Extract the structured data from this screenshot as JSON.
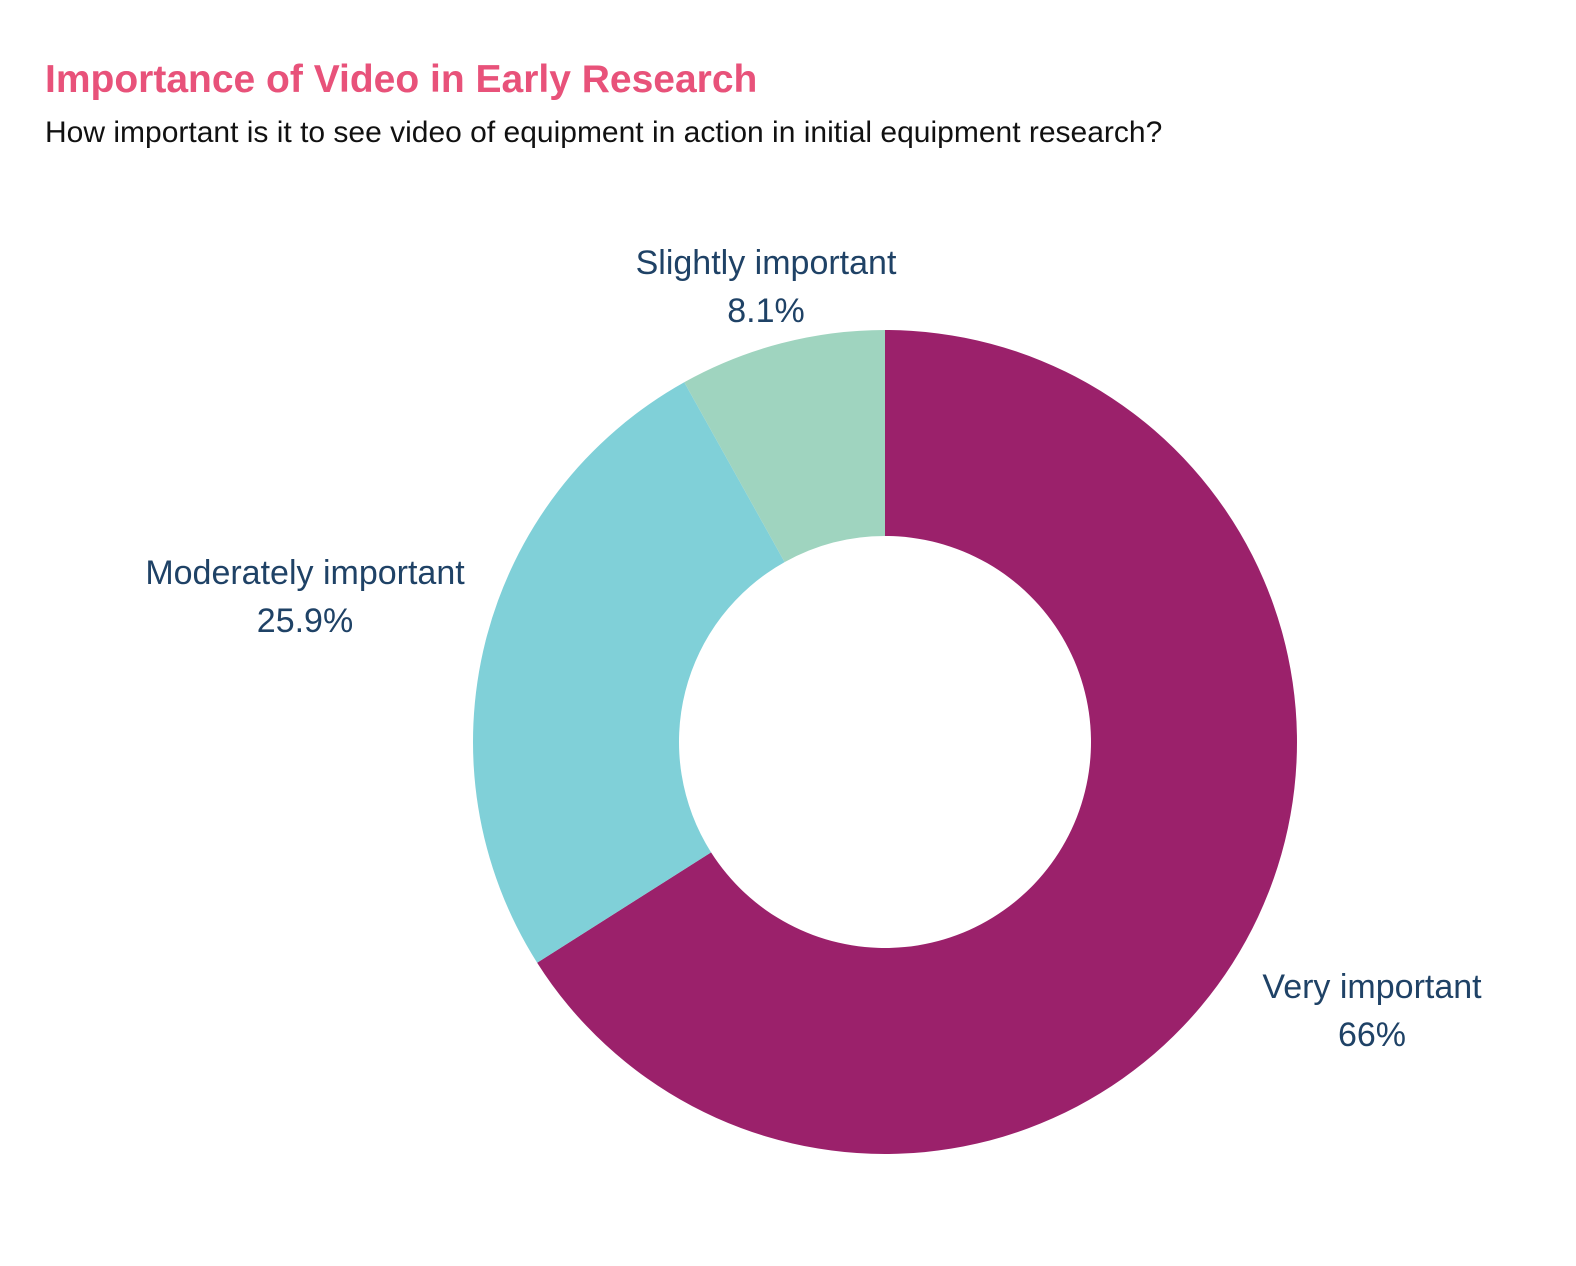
{
  "title": "Importance of Video in Early Research",
  "subtitle": "How important is it to see video of equipment in action in initial equipment research?",
  "chart_data": {
    "type": "pie",
    "donut": true,
    "title": "Importance of Video in Early Research",
    "subtitle": "How important is it to see video of equipment in action in initial equipment research?",
    "legend": "none (labels next to slices)",
    "slices": [
      {
        "label": "Very important",
        "value": 66,
        "value_label": "66%",
        "color": "#9b216b"
      },
      {
        "label": "Moderately important",
        "value": 25.9,
        "value_label": "25.9%",
        "color": "#80d0d8"
      },
      {
        "label": "Slightly important",
        "value": 8.1,
        "value_label": "8.1%",
        "color": "#9fd4bf"
      }
    ]
  }
}
